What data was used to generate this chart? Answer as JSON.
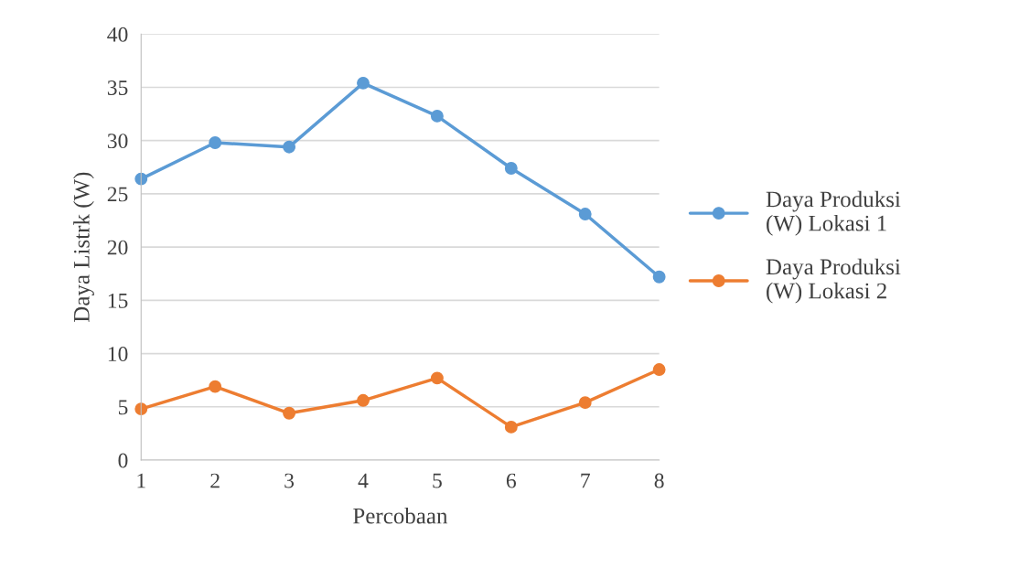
{
  "chart_data": {
    "type": "line",
    "xlabel": "Percobaan",
    "ylabel": "Daya Listrk (W)",
    "x": [
      1,
      2,
      3,
      4,
      5,
      6,
      7,
      8
    ],
    "xlim": [
      1,
      8
    ],
    "xticks": [
      1,
      2,
      3,
      4,
      5,
      6,
      7,
      8
    ],
    "ylim": [
      0,
      40
    ],
    "yticks": [
      0,
      5,
      10,
      15,
      20,
      25,
      30,
      35,
      40
    ],
    "grid": "y",
    "legend": "right",
    "marker": "circle",
    "line_style": "solid",
    "series": [
      {
        "name": "Daya Produksi\n(W) Lokasi 1",
        "color": "#5b9bd5",
        "values": [
          26.4,
          29.8,
          29.4,
          35.4,
          32.3,
          27.4,
          23.1,
          17.2
        ]
      },
      {
        "name": "Daya Produksi\n(W) Lokasi 2",
        "color": "#ed7d31",
        "values": [
          4.8,
          6.9,
          4.4,
          5.6,
          7.7,
          3.1,
          5.4,
          8.5
        ]
      }
    ]
  }
}
